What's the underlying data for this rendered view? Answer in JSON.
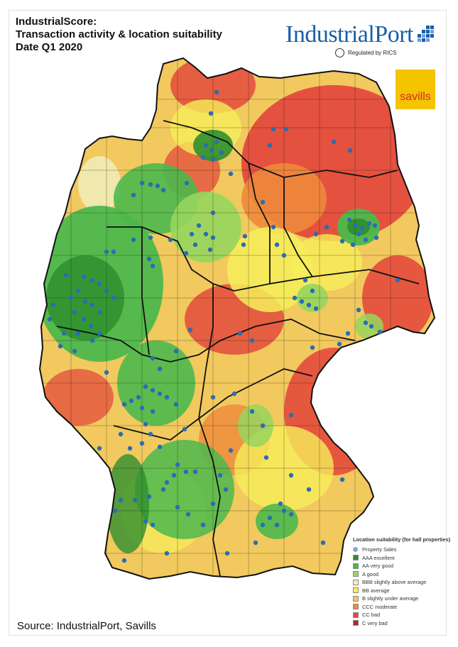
{
  "title": {
    "line1": "IndustrialScore:",
    "line2": "Transaction activity & location suitability",
    "line3": "Date Q1 2020"
  },
  "logo": {
    "name": "IndustrialPort",
    "regulated": "Regulated by RICS",
    "brand_color": "#1a5ea8"
  },
  "savills": {
    "label": "savills",
    "bg_color": "#f5c400",
    "text_color": "#d8262e"
  },
  "legend": {
    "title": "Location suitability (for hall properties)",
    "sales": {
      "label": "Property Sales",
      "color": "#8aa8d8"
    },
    "items": [
      {
        "label": "AAA excellent",
        "color": "#2f8f2f"
      },
      {
        "label": "AA very good",
        "color": "#4cb84c"
      },
      {
        "label": "A good",
        "color": "#96d65e"
      },
      {
        "label": "BBB slightly above average",
        "color": "#f0f0c0"
      },
      {
        "label": "BB average",
        "color": "#f6ee5a"
      },
      {
        "label": "B slightly under average",
        "color": "#f2c95e"
      },
      {
        "label": "CCC moderate",
        "color": "#ee8a3c"
      },
      {
        "label": "CC bad",
        "color": "#e34b3c"
      },
      {
        "label": "C very bad",
        "color": "#b5272a"
      }
    ]
  },
  "map": {
    "dot_color": "#2a6db5",
    "border_color": "#111111"
  },
  "source": "Source: IndustrialPort, Savills"
}
